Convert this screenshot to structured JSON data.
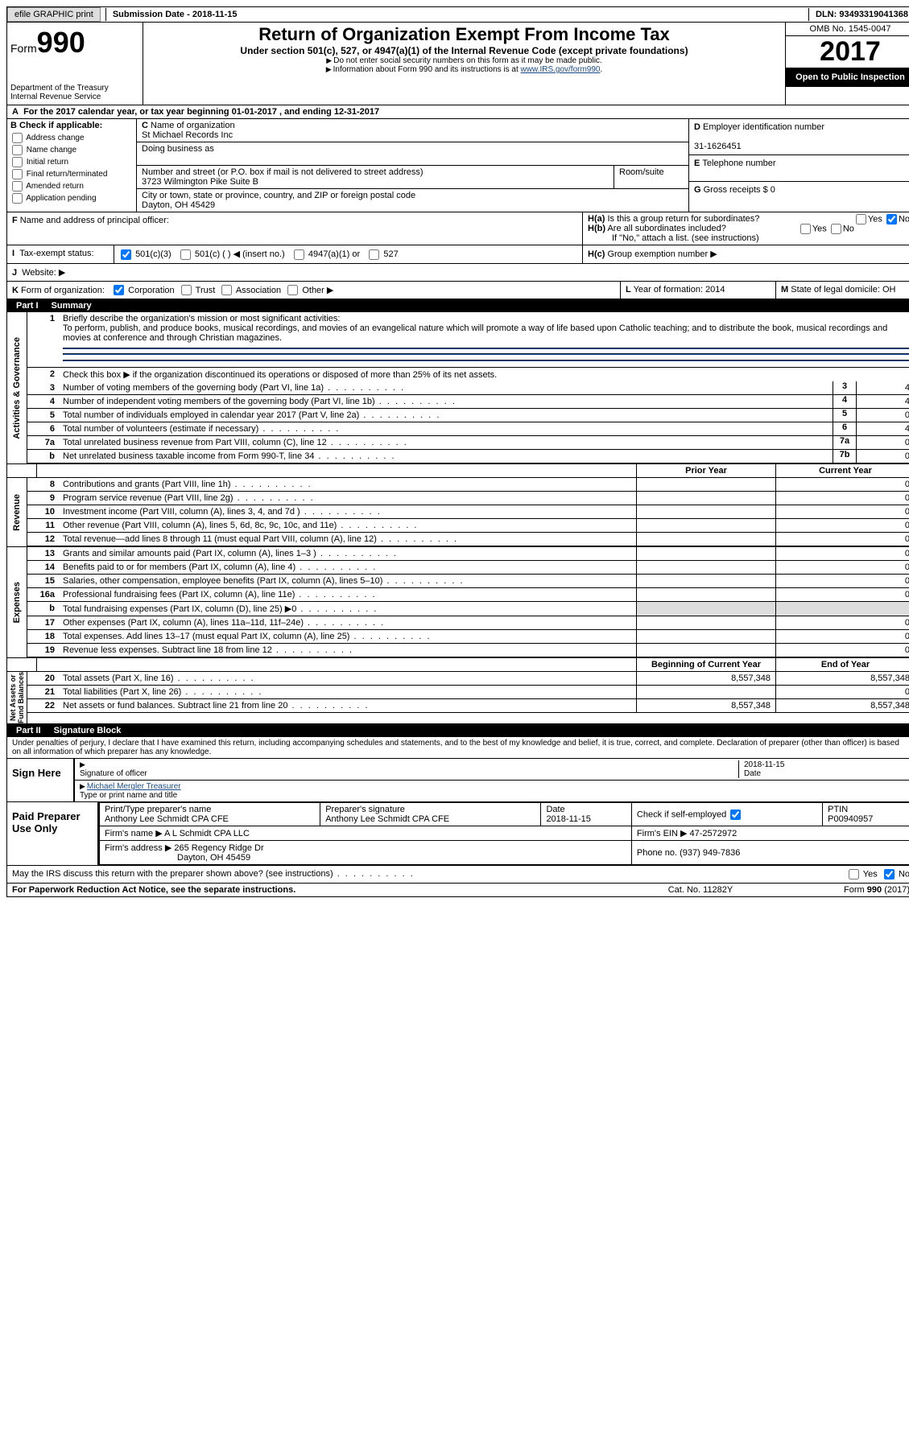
{
  "topbar": {
    "efile": "efile GRAPHIC print",
    "sub_label": "Submission Date -",
    "sub_date": "2018-11-15",
    "dln_label": "DLN:",
    "dln": "93493319041368"
  },
  "header": {
    "form_prefix": "Form",
    "form_no": "990",
    "dept1": "Department of the Treasury",
    "dept2": "Internal Revenue Service",
    "title": "Return of Organization Exempt From Income Tax",
    "subtitle": "Under section 501(c), 527, or 4947(a)(1) of the Internal Revenue Code (except private foundations)",
    "note1": "Do not enter social security numbers on this form as it may be made public.",
    "note2": "Information about Form 990 and its instructions is at ",
    "note2_link": "www.IRS.gov/form990",
    "omb": "OMB No. 1545-0047",
    "year": "2017",
    "public": "Open to Public Inspection"
  },
  "rowA": {
    "text": "For the 2017 calendar year, or tax year beginning ",
    "beg": "01-01-2017",
    "mid": " , and ending ",
    "end": "12-31-2017"
  },
  "B": {
    "hd": "Check if applicable:",
    "addr_change": "Address change",
    "name_change": "Name change",
    "initial": "Initial return",
    "final": "Final return/terminated",
    "amended": "Amended return",
    "app_pending": "Application pending"
  },
  "C": {
    "name_lbl": "Name of organization",
    "name": "St Michael Records Inc",
    "dba_lbl": "Doing business as",
    "dba": "",
    "street_lbl": "Number and street (or P.O. box if mail is not delivered to street address)",
    "room_lbl": "Room/suite",
    "street": "3723 Wilmington Pike Suite B",
    "city_lbl": "City or town, state or province, country, and ZIP or foreign postal code",
    "city": "Dayton, OH  45429"
  },
  "D": {
    "lbl": "Employer identification number",
    "val": "31-1626451"
  },
  "E": {
    "lbl": "Telephone number",
    "val": ""
  },
  "G": {
    "lbl": "Gross receipts $",
    "val": "0"
  },
  "F": {
    "lbl": "Name and address of principal officer:",
    "val": ""
  },
  "H": {
    "a": "Is this a group return for subordinates?",
    "a_yes": "Yes",
    "a_no": "No",
    "b": "Are all subordinates included?",
    "b_yes": "Yes",
    "b_no": "No",
    "b_note": "If \"No,\" attach a list. (see instructions)",
    "c": "Group exemption number ▶"
  },
  "I": {
    "lbl": "Tax-exempt status:",
    "o1": "501(c)(3)",
    "o2": "501(c) (   ) ◀ (insert no.)",
    "o3": "4947(a)(1) or",
    "o4": "527"
  },
  "J": {
    "lbl": "Website: ▶",
    "val": ""
  },
  "K": {
    "lbl": "Form of organization:",
    "corp": "Corporation",
    "trust": "Trust",
    "assoc": "Association",
    "other": "Other ▶"
  },
  "L": {
    "lbl": "Year of formation:",
    "val": "2014"
  },
  "M": {
    "lbl": "State of legal domicile:",
    "val": "OH"
  },
  "part1": {
    "label": "Part I",
    "title": "Summary"
  },
  "p1": {
    "l1": "Briefly describe the organization's mission or most significant activities:",
    "mission": "To perform, publish, and produce books, musical recordings, and movies of an evangelical nature which will promote a way of life based upon Catholic teaching; and to distribute the book, musical recordings and movies at conference and through Christian magazines.",
    "l2": "Check this box ▶        if the organization discontinued its operations or disposed of more than 25% of its net assets.",
    "l3": "Number of voting members of the governing body (Part VI, line 1a)",
    "v3": "4",
    "l4": "Number of independent voting members of the governing body (Part VI, line 1b)",
    "v4": "4",
    "l5": "Total number of individuals employed in calendar year 2017 (Part V, line 2a)",
    "v5": "0",
    "l6": "Total number of volunteers (estimate if necessary)",
    "v6": "4",
    "l7a": "Total unrelated business revenue from Part VIII, column (C), line 12",
    "v7a": "0",
    "l7b": "Net unrelated business taxable income from Form 990-T, line 34",
    "v7b": "0"
  },
  "cols": {
    "prior": "Prior Year",
    "curr": "Current Year",
    "beg": "Beginning of Current Year",
    "end": "End of Year"
  },
  "revenue": [
    {
      "n": "8",
      "t": "Contributions and grants (Part VIII, line 1h)",
      "p": "",
      "c": "0"
    },
    {
      "n": "9",
      "t": "Program service revenue (Part VIII, line 2g)",
      "p": "",
      "c": "0"
    },
    {
      "n": "10",
      "t": "Investment income (Part VIII, column (A), lines 3, 4, and 7d )",
      "p": "",
      "c": "0"
    },
    {
      "n": "11",
      "t": "Other revenue (Part VIII, column (A), lines 5, 6d, 8c, 9c, 10c, and 11e)",
      "p": "",
      "c": "0"
    },
    {
      "n": "12",
      "t": "Total revenue—add lines 8 through 11 (must equal Part VIII, column (A), line 12)",
      "p": "",
      "c": "0"
    }
  ],
  "expenses": [
    {
      "n": "13",
      "t": "Grants and similar amounts paid (Part IX, column (A), lines 1–3 )",
      "p": "",
      "c": "0"
    },
    {
      "n": "14",
      "t": "Benefits paid to or for members (Part IX, column (A), line 4)",
      "p": "",
      "c": "0"
    },
    {
      "n": "15",
      "t": "Salaries, other compensation, employee benefits (Part IX, column (A), lines 5–10)",
      "p": "",
      "c": "0"
    },
    {
      "n": "16a",
      "t": "Professional fundraising fees (Part IX, column (A), line 11e)",
      "p": "",
      "c": "0"
    },
    {
      "n": "b",
      "t": "Total fundraising expenses (Part IX, column (D), line 25) ▶0",
      "p": "—",
      "c": "—"
    },
    {
      "n": "17",
      "t": "Other expenses (Part IX, column (A), lines 11a–11d, 11f–24e)",
      "p": "",
      "c": "0"
    },
    {
      "n": "18",
      "t": "Total expenses. Add lines 13–17 (must equal Part IX, column (A), line 25)",
      "p": "",
      "c": "0"
    },
    {
      "n": "19",
      "t": "Revenue less expenses. Subtract line 18 from line 12",
      "p": "",
      "c": "0"
    }
  ],
  "net": [
    {
      "n": "20",
      "t": "Total assets (Part X, line 16)",
      "p": "8,557,348",
      "c": "8,557,348"
    },
    {
      "n": "21",
      "t": "Total liabilities (Part X, line 26)",
      "p": "",
      "c": "0"
    },
    {
      "n": "22",
      "t": "Net assets or fund balances. Subtract line 21 from line 20",
      "p": "8,557,348",
      "c": "8,557,348"
    }
  ],
  "sides": {
    "ag": "Activities & Governance",
    "rev": "Revenue",
    "exp": "Expenses",
    "net": "Net Assets or\nFund Balances"
  },
  "part2": {
    "label": "Part II",
    "title": "Signature Block"
  },
  "penalty": "Under penalties of perjury, I declare that I have examined this return, including accompanying schedules and statements, and to the best of my knowledge and belief, it is true, correct, and complete. Declaration of preparer (other than officer) is based on all information of which preparer has any knowledge.",
  "sign": {
    "side": "Sign Here",
    "sig_lbl": "Signature of officer",
    "date_lbl": "Date",
    "date": "2018-11-15",
    "name": "Michael Mergler Treasurer",
    "name_lbl": "Type or print name and title"
  },
  "prep": {
    "side": "Paid Preparer Use Only",
    "c1": "Print/Type preparer's name",
    "v1": "Anthony Lee Schmidt CPA CFE",
    "c2": "Preparer's signature",
    "v2": "Anthony Lee Schmidt CPA CFE",
    "c3": "Date",
    "v3": "2018-11-15",
    "c4": "Check         if self-employed",
    "ptin_lbl": "PTIN",
    "ptin": "P00940957",
    "firm_lbl": "Firm's name    ▶",
    "firm": "A L Schmidt CPA LLC",
    "ein_lbl": "Firm's EIN ▶",
    "ein": "47-2572972",
    "addr_lbl": "Firm's address ▶",
    "addr": "265 Regency Ridge Dr",
    "addr2": "Dayton, OH  45459",
    "phone_lbl": "Phone no.",
    "phone": "(937) 949-7836"
  },
  "discuss": {
    "q": "May the IRS discuss this return with the preparer shown above? (see instructions)",
    "yes": "Yes",
    "no": "No"
  },
  "footer": {
    "l": "For Paperwork Reduction Act Notice, see the separate instructions.",
    "c": "Cat. No. 11282Y",
    "r": "Form 990 (2017)"
  }
}
